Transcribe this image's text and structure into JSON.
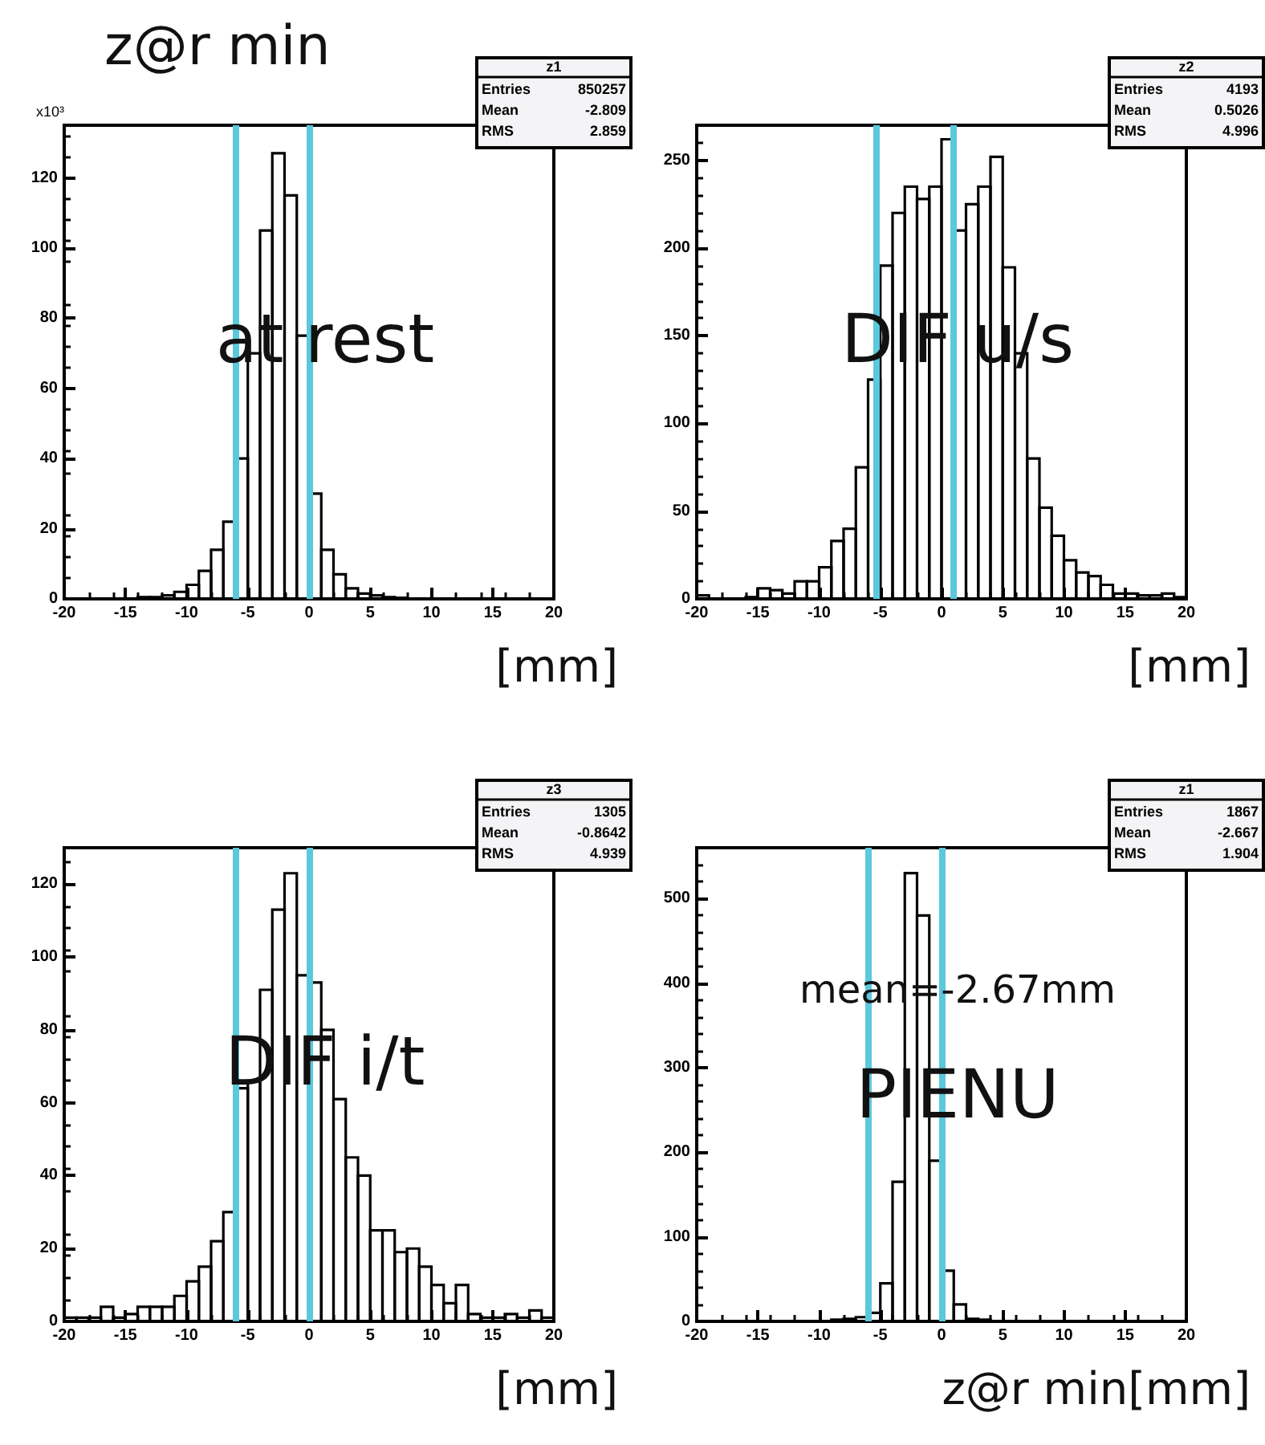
{
  "chart_data": [
    {
      "type": "histogram",
      "title": "z@r min",
      "xlabel": "[mm]",
      "ylabel": "x10³",
      "color": "#000000",
      "bins": [
        -20,
        -19,
        -18,
        -17,
        -16,
        -15,
        -14,
        -13,
        -12,
        -11,
        -10,
        -9,
        -8,
        -7,
        -6,
        -5,
        -4,
        -3,
        -2,
        -1,
        0,
        1,
        2,
        3,
        4,
        5,
        6,
        7,
        8,
        9,
        10,
        11,
        12,
        13,
        14,
        15,
        16,
        17,
        18,
        19,
        20
      ],
      "values": [
        0,
        0,
        0,
        0,
        0,
        0,
        0.5,
        0.5,
        1,
        2,
        4,
        8,
        14,
        22,
        40,
        70,
        105,
        127,
        115,
        75,
        30,
        14,
        7,
        3,
        1.5,
        1,
        0.5,
        0.3,
        0,
        0,
        0,
        0,
        0,
        0,
        0,
        0,
        0,
        0,
        0,
        0
      ],
      "xlim": [
        -20,
        20
      ],
      "xticks": [
        -20,
        -15,
        -10,
        -5,
        0,
        5,
        10,
        15,
        20
      ],
      "ylim": [
        0,
        135
      ],
      "yticks": [
        0,
        20,
        40,
        60,
        80,
        100,
        120
      ],
      "ref_lines": [
        {
          "axis": "x",
          "value": -6,
          "color": "#5bc8dc"
        },
        {
          "axis": "x",
          "value": 0,
          "color": "#5bc8dc"
        }
      ],
      "annotations": [
        "z1",
        "Entries",
        "850257",
        "Mean",
        "-2.809",
        "RMS",
        "2.859",
        "at rest"
      ]
    },
    {
      "type": "histogram",
      "xlabel": "[mm]",
      "color": "#000000",
      "bins": [
        -20,
        -19,
        -18,
        -17,
        -16,
        -15,
        -14,
        -13,
        -12,
        -11,
        -10,
        -9,
        -8,
        -7,
        -6,
        -5,
        -4,
        -3,
        -2,
        -1,
        0,
        1,
        2,
        3,
        4,
        5,
        6,
        7,
        8,
        9,
        10,
        11,
        12,
        13,
        14,
        15,
        16,
        17,
        18,
        19,
        20
      ],
      "values": [
        2,
        0,
        0,
        0,
        1,
        6,
        5,
        3,
        10,
        10,
        18,
        33,
        40,
        75,
        125,
        190,
        220,
        235,
        228,
        235,
        262,
        210,
        225,
        235,
        252,
        189,
        140,
        80,
        52,
        36,
        22,
        15,
        13,
        8,
        3,
        3,
        2,
        2,
        3,
        1
      ],
      "xlim": [
        -20,
        20
      ],
      "xticks": [
        -20,
        -15,
        -10,
        -5,
        0,
        5,
        10,
        15,
        20
      ],
      "ylim": [
        0,
        270
      ],
      "yticks": [
        0,
        50,
        100,
        150,
        200,
        250
      ],
      "ref_lines": [
        {
          "axis": "x",
          "value": -5.3,
          "color": "#5bc8dc"
        },
        {
          "axis": "x",
          "value": 0.9,
          "color": "#5bc8dc"
        }
      ],
      "annotations": [
        "z2",
        "Entries",
        "4193",
        "Mean",
        "0.5026",
        "RMS",
        "4.996",
        "DIF u/s"
      ]
    },
    {
      "type": "histogram",
      "xlabel": "[mm]",
      "color": "#000000",
      "bins": [
        -20,
        -19,
        -18,
        -17,
        -16,
        -15,
        -14,
        -13,
        -12,
        -11,
        -10,
        -9,
        -8,
        -7,
        -6,
        -5,
        -4,
        -3,
        -2,
        -1,
        0,
        1,
        2,
        3,
        4,
        5,
        6,
        7,
        8,
        9,
        10,
        11,
        12,
        13,
        14,
        15,
        16,
        17,
        18,
        19,
        20
      ],
      "values": [
        1,
        1,
        1,
        4,
        1,
        2,
        4,
        4,
        4,
        7,
        11,
        15,
        22,
        30,
        64,
        66,
        91,
        113,
        123,
        95,
        93,
        80,
        61,
        45,
        40,
        25,
        25,
        19,
        20,
        15,
        10,
        5,
        10,
        2,
        1,
        1,
        2,
        1,
        3,
        1
      ],
      "xlim": [
        -20,
        20
      ],
      "xticks": [
        -20,
        -15,
        -10,
        -5,
        0,
        5,
        10,
        15,
        20
      ],
      "ylim": [
        0,
        130
      ],
      "yticks": [
        0,
        20,
        40,
        60,
        80,
        100,
        120
      ],
      "ref_lines": [
        {
          "axis": "x",
          "value": -6,
          "color": "#5bc8dc"
        },
        {
          "axis": "x",
          "value": 0,
          "color": "#5bc8dc"
        }
      ],
      "annotations": [
        "z3",
        "Entries",
        "1305",
        "Mean",
        "-0.8642",
        "RMS",
        "4.939",
        "DIF i/t"
      ]
    },
    {
      "type": "histogram",
      "xlabel": "z@r min[mm]",
      "color": "#000000",
      "bins": [
        -20,
        -19,
        -18,
        -17,
        -16,
        -15,
        -14,
        -13,
        -12,
        -11,
        -10,
        -9,
        -8,
        -7,
        -6,
        -5,
        -4,
        -3,
        -2,
        -1,
        0,
        1,
        2,
        3,
        4,
        5,
        6,
        7,
        8,
        9,
        10,
        11,
        12,
        13,
        14,
        15,
        16,
        17,
        18,
        19,
        20
      ],
      "values": [
        0,
        0,
        0,
        0,
        0,
        0,
        0,
        0,
        0,
        0,
        0,
        2,
        3,
        5,
        10,
        45,
        165,
        530,
        480,
        190,
        60,
        20,
        3,
        2,
        0,
        0,
        0,
        0,
        0,
        0,
        0,
        0,
        0,
        0,
        0,
        0,
        0,
        0,
        0,
        0
      ],
      "xlim": [
        -20,
        20
      ],
      "xticks": [
        -20,
        -15,
        -10,
        -5,
        0,
        5,
        10,
        15,
        20
      ],
      "ylim": [
        0,
        560
      ],
      "yticks": [
        0,
        100,
        200,
        300,
        400,
        500
      ],
      "ref_lines": [
        {
          "axis": "x",
          "value": -6,
          "color": "#5bc8dc"
        },
        {
          "axis": "x",
          "value": 0,
          "color": "#5bc8dc"
        }
      ],
      "annotations": [
        "z1",
        "Entries",
        "1867",
        "Mean",
        "-2.667",
        "RMS",
        "1.904",
        "mean=-2.67mm",
        "PIENU"
      ]
    }
  ]
}
